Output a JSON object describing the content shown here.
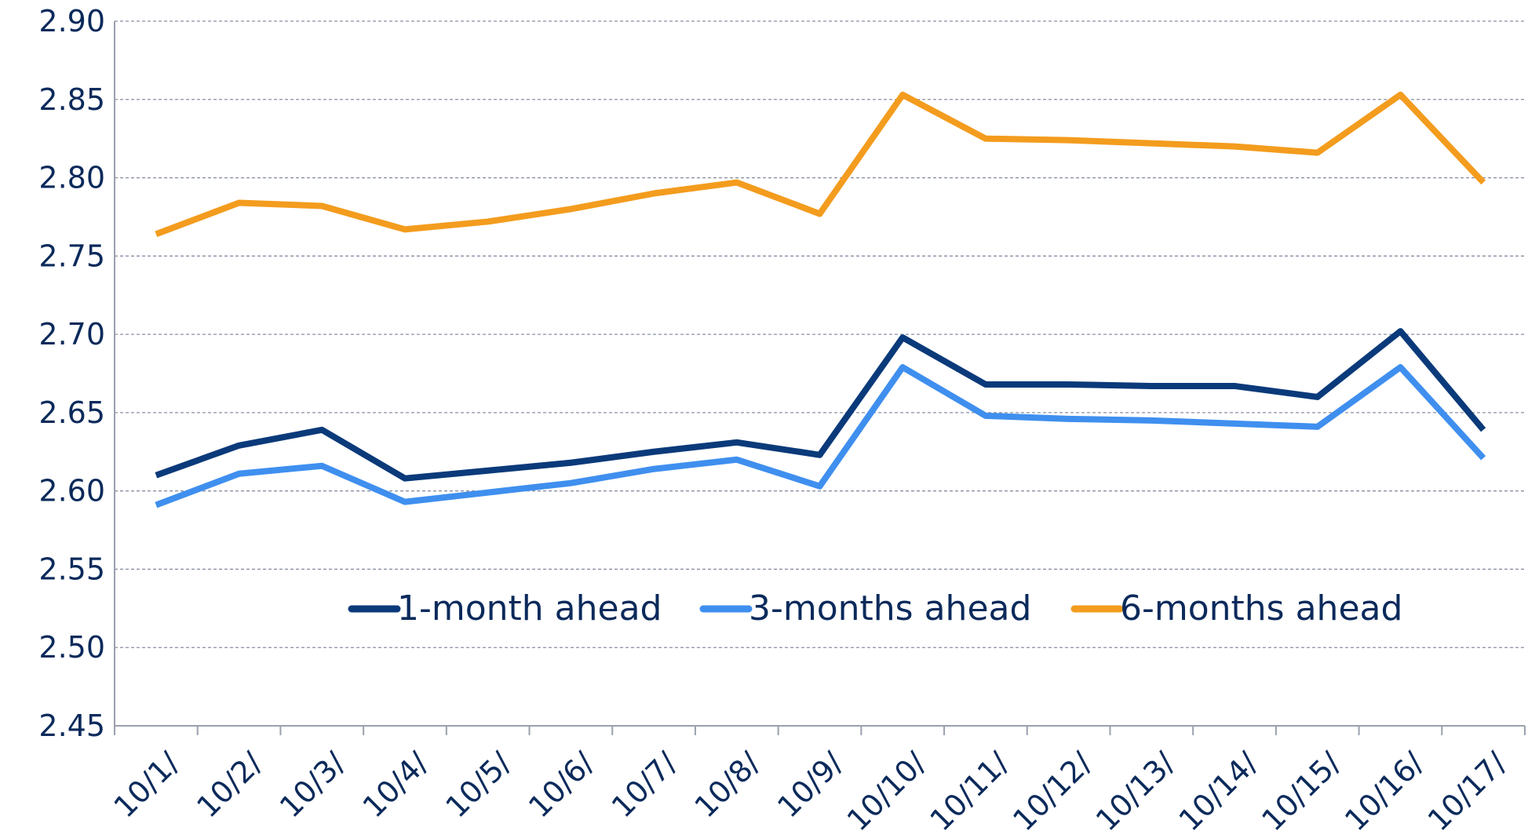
{
  "chart_data": {
    "type": "line",
    "categories": [
      "10/1/",
      "10/2/",
      "10/3/",
      "10/4/",
      "10/5/",
      "10/6/",
      "10/7/",
      "10/8/",
      "10/9/",
      "10/10/",
      "10/11/",
      "10/12/",
      "10/13/",
      "10/14/",
      "10/15/",
      "10/16/",
      "10/17/"
    ],
    "series": [
      {
        "name": "1-month ahead",
        "color": "#0b3a7a",
        "values": [
          2.61,
          2.629,
          2.639,
          2.608,
          2.613,
          2.618,
          2.625,
          2.631,
          2.623,
          2.698,
          2.668,
          2.668,
          2.667,
          2.667,
          2.66,
          2.702,
          2.639
        ]
      },
      {
        "name": "3-months ahead",
        "color": "#3f8fef",
        "values": [
          2.591,
          2.611,
          2.616,
          2.593,
          2.599,
          2.605,
          2.614,
          2.62,
          2.603,
          2.679,
          2.648,
          2.646,
          2.645,
          2.643,
          2.641,
          2.679,
          2.621
        ]
      },
      {
        "name": "6-months ahead",
        "color": "#f39c1e",
        "values": [
          2.764,
          2.784,
          2.782,
          2.767,
          2.772,
          2.78,
          2.79,
          2.797,
          2.777,
          2.853,
          2.825,
          2.824,
          2.822,
          2.82,
          2.816,
          2.853,
          2.797
        ]
      }
    ],
    "ylim": [
      2.45,
      2.9
    ],
    "yticks": [
      {
        "value": 2.9,
        "label": "2.90"
      },
      2.85,
      {
        "value": 2.8,
        "label": "2.80"
      },
      2.75,
      {
        "value": 2.7,
        "label": "2.70"
      },
      2.65,
      {
        "value": 2.6,
        "label": "2.60"
      },
      2.55,
      {
        "value": 2.5,
        "label": "2.50"
      },
      2.45
    ],
    "grid": true,
    "legend": "lower center"
  }
}
